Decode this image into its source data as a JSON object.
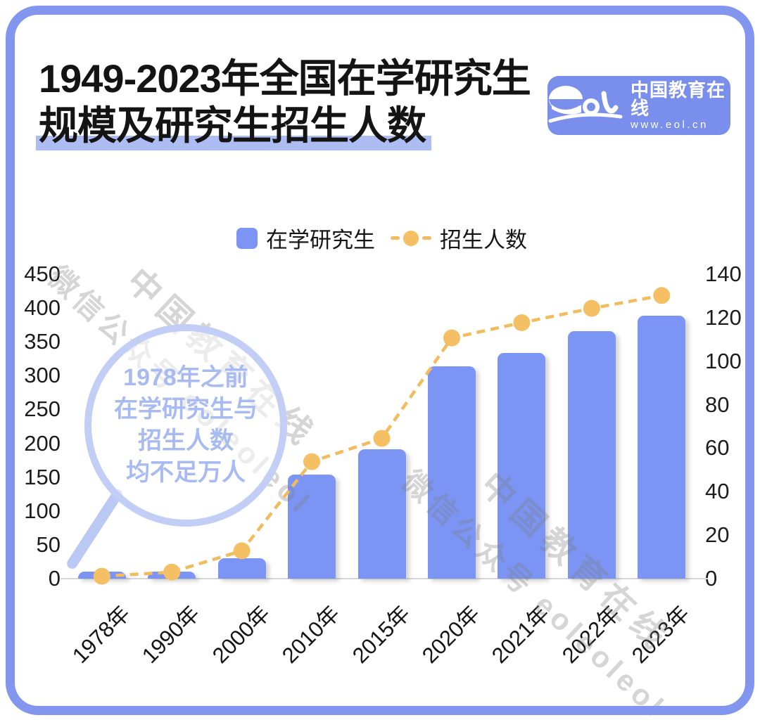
{
  "header": {
    "title_line1": "1949-2023年全国在学研究生",
    "title_line2": "规模及研究生招生人数",
    "highlight_color": "#adbcf2"
  },
  "logo": {
    "mark": "eol",
    "name": "中国教育在线",
    "url": "www.eol.cn",
    "bg_color": "#7a8eec"
  },
  "annotation": {
    "lines": [
      "1978年之前",
      "在学研究生与",
      "招生人数",
      "均不足万人"
    ]
  },
  "watermark": {
    "line1": "中国教育在线",
    "line2": "微信公众号 eoleoleol"
  },
  "colors": {
    "bar": "#7c95f4",
    "line": "#f2bc5e",
    "dot": "#f5bf63",
    "frame": "#8296f0",
    "annotation_text": "#a7bbf2"
  },
  "chart_data": {
    "type": "bar",
    "categories": [
      "1978年",
      "1990年",
      "2000年",
      "2010年",
      "2015年",
      "2020年",
      "2021年",
      "2022年",
      "2023年"
    ],
    "series": [
      {
        "name": "在学研究生",
        "type": "bar",
        "y_axis": "left",
        "unit": "万人",
        "color": "#7c95f4",
        "values": [
          1.1,
          9.3,
          30.1,
          153.8,
          191.1,
          314.0,
          333.2,
          365.4,
          388.3
        ]
      },
      {
        "name": "招生人数",
        "type": "line",
        "line_style": "dashed",
        "y_axis": "right",
        "unit": "万人",
        "color": "#f5bf63",
        "values": [
          1.1,
          3.0,
          12.8,
          53.8,
          64.5,
          110.7,
          117.7,
          124.3,
          130.2
        ]
      }
    ],
    "left_axis": {
      "min": 0,
      "max": 450,
      "step": 50
    },
    "right_axis": {
      "min": 0,
      "max": 140,
      "step": 20
    },
    "grid": false,
    "legend_position": "top-center"
  }
}
